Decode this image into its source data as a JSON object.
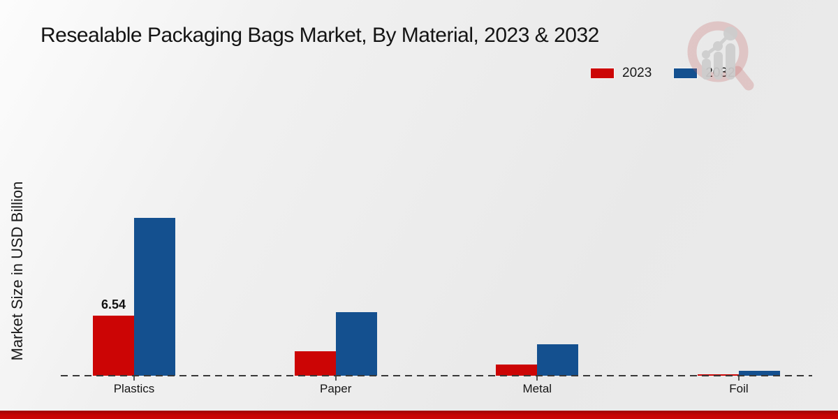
{
  "title": "Resealable Packaging Bags Market, By Material, 2023 & 2032",
  "y_axis_label": "Market Size in USD Billion",
  "legend": {
    "items": [
      {
        "label": "2023",
        "color": "#cc0505"
      },
      {
        "label": "2032",
        "color": "#14508f"
      }
    ]
  },
  "chart_data": {
    "type": "bar",
    "title": "Resealable Packaging Bags Market, By Material, 2023 & 2032",
    "ylabel": "Market Size in USD Billion",
    "xlabel": "",
    "categories": [
      "Plastics",
      "Paper",
      "Metal",
      "Foil"
    ],
    "series": [
      {
        "name": "2023",
        "color": "#cc0505",
        "values": [
          6.54,
          2.65,
          1.2,
          0.15
        ]
      },
      {
        "name": "2032",
        "color": "#14508f",
        "values": [
          17.2,
          6.9,
          3.4,
          0.55
        ]
      }
    ],
    "data_labels": [
      {
        "series_index": 0,
        "category_index": 0,
        "text": "6.54"
      }
    ],
    "ylim": [
      0,
      20
    ],
    "grid": false,
    "legend_position": "upper-right",
    "baseline_style": "dashed"
  },
  "branding": {
    "logo_name": "market-research-future-watermark",
    "footer_color": "#cc0404"
  }
}
